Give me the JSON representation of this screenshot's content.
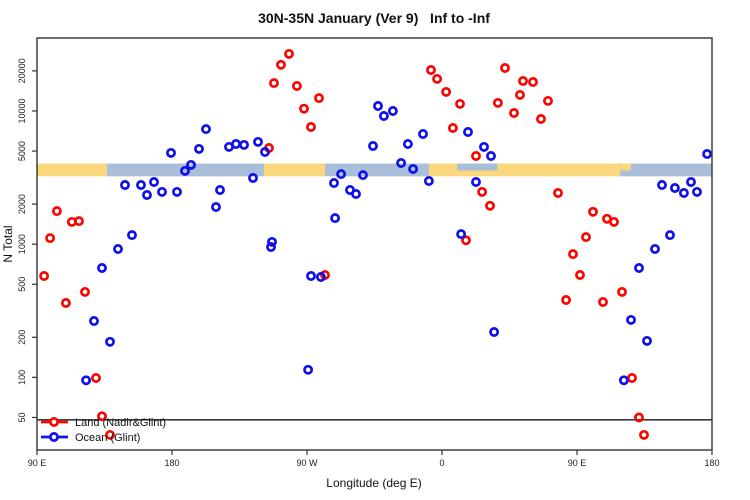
{
  "title": "30N-35N January (Ver 9)   Inf to -Inf",
  "xlabel": "Longitude (deg E)",
  "ylabel": "N Total",
  "colors": {
    "land_series": "#f90600",
    "ocean_series": "#1010e8",
    "band_land": "#fbd87b",
    "band_ocean": "#a9bfd9",
    "frame": "#333333",
    "reference_line": "#3a3a3a",
    "text": "#1a1a1a"
  },
  "legend": {
    "items": [
      {
        "label": "Land (Nadir&Glint)",
        "color": "#f90600"
      },
      {
        "label": "Ocean (Glint)",
        "color": "#1010e8"
      }
    ]
  },
  "chart_data": {
    "type": "scatter",
    "title": "30N-35N January (Ver 9)   Inf to -Inf",
    "xlabel": "Longitude (deg E)",
    "ylabel": "N Total",
    "x_axis": {
      "note": "longitude axis unwrapped, runs 90E -> 180 -> 90W -> 0 -> 90E -> 180; internal coords 90..540",
      "range": [
        90,
        540
      ],
      "ticks": [
        {
          "value": 90,
          "label": "90 E"
        },
        {
          "value": 180,
          "label": "180"
        },
        {
          "value": 270,
          "label": "90 W"
        },
        {
          "value": 360,
          "label": "0"
        },
        {
          "value": 450,
          "label": "90 E"
        },
        {
          "value": 540,
          "label": "180"
        }
      ]
    },
    "y_axis": {
      "scale": "log",
      "range": [
        28.5,
        35300
      ],
      "ticks": [
        50,
        100,
        200,
        500,
        1000,
        2000,
        5000,
        10000,
        20000
      ]
    },
    "reference_line_y": 48,
    "map_band": {
      "value_range": [
        3230,
        4030
      ],
      "segments": [
        {
          "from": 90,
          "to": 136.7,
          "type": "land"
        },
        {
          "from": 136.7,
          "to": 241.3,
          "type": "ocean"
        },
        {
          "from": 241.3,
          "to": 282,
          "type": "land"
        },
        {
          "from": 282,
          "to": 351.3,
          "type": "ocean"
        },
        {
          "from": 351.3,
          "to": 478.7,
          "type": "land"
        },
        {
          "from": 478.7,
          "to": 540,
          "type": "ocean"
        }
      ],
      "overlays": [
        {
          "from": 370,
          "to": 397,
          "type": "ocean",
          "half": "top"
        },
        {
          "from": 479,
          "to": 486,
          "type": "land",
          "half": "top"
        }
      ]
    },
    "series": [
      {
        "name": "Land (Nadir&Glint)",
        "color": "#f90600",
        "points": [
          [
            258,
            26800
          ],
          [
            252.7,
            22200
          ],
          [
            248,
            16200
          ],
          [
            263.3,
            15400
          ],
          [
            278,
            12500
          ],
          [
            268,
            10400
          ],
          [
            272.7,
            7580
          ],
          [
            244.7,
            5270
          ],
          [
            103.3,
            1770
          ],
          [
            118,
            1490
          ],
          [
            113.3,
            1470
          ],
          [
            98.7,
            1110
          ],
          [
            94.7,
            577
          ],
          [
            122,
            438
          ],
          [
            109.3,
            362
          ],
          [
            129.3,
            99
          ],
          [
            133.3,
            51
          ],
          [
            138.7,
            37
          ],
          [
            282,
            587
          ],
          [
            352.7,
            20300
          ],
          [
            356.7,
            17400
          ],
          [
            362.7,
            13900
          ],
          [
            372,
            11300
          ],
          [
            402,
            21000
          ],
          [
            397.3,
            11500
          ],
          [
            408,
            9660
          ],
          [
            414,
            16800
          ],
          [
            420.7,
            16500
          ],
          [
            412,
            13200
          ],
          [
            430.7,
            11900
          ],
          [
            426,
            8710
          ],
          [
            367.3,
            7450
          ],
          [
            382.7,
            4590
          ],
          [
            386.7,
            2470
          ],
          [
            392,
            1940
          ],
          [
            437.3,
            2420
          ],
          [
            460.7,
            1750
          ],
          [
            470,
            1550
          ],
          [
            474.7,
            1470
          ],
          [
            456,
            1130
          ],
          [
            376,
            1070
          ],
          [
            447.3,
            843
          ],
          [
            452,
            587
          ],
          [
            442.7,
            381
          ],
          [
            467.3,
            368
          ],
          [
            480,
            438
          ],
          [
            486.7,
            99
          ],
          [
            491.3,
            50
          ],
          [
            494.7,
            37
          ]
        ]
      },
      {
        "name": "Ocean (Glint)",
        "color": "#1010e8",
        "points": [
          [
            202.7,
            7310
          ],
          [
            179.3,
            4840
          ],
          [
            198,
            5190
          ],
          [
            218,
            5370
          ],
          [
            222.7,
            5650
          ],
          [
            228,
            5560
          ],
          [
            237.3,
            5860
          ],
          [
            242,
            4920
          ],
          [
            188.7,
            3550
          ],
          [
            192.7,
            3940
          ],
          [
            234,
            3140
          ],
          [
            148.7,
            2780
          ],
          [
            159.3,
            2780
          ],
          [
            168,
            2930
          ],
          [
            163.3,
            2340
          ],
          [
            173.3,
            2470
          ],
          [
            183.3,
            2470
          ],
          [
            212,
            2550
          ],
          [
            209.3,
            1900
          ],
          [
            288,
            2880
          ],
          [
            292.7,
            3360
          ],
          [
            298.7,
            2550
          ],
          [
            302.7,
            2380
          ],
          [
            307.3,
            3300
          ],
          [
            288.7,
            1570
          ],
          [
            153.3,
            1170
          ],
          [
            246.7,
            1040
          ],
          [
            317.3,
            10900
          ],
          [
            321.3,
            9160
          ],
          [
            327.3,
            10000
          ],
          [
            314,
            5460
          ],
          [
            347.3,
            6710
          ],
          [
            337.3,
            5650
          ],
          [
            332.7,
            4070
          ],
          [
            340.7,
            3670
          ],
          [
            351.3,
            2980
          ],
          [
            377.3,
            6950
          ],
          [
            388,
            5370
          ],
          [
            392.7,
            4590
          ],
          [
            382.7,
            2930
          ],
          [
            372.7,
            1190
          ],
          [
            512,
            1170
          ],
          [
            506.7,
            2780
          ],
          [
            515.3,
            2640
          ],
          [
            526,
            2930
          ],
          [
            521.3,
            2420
          ],
          [
            530,
            2470
          ],
          [
            536.7,
            4750
          ],
          [
            144,
            920
          ],
          [
            133.3,
            663
          ],
          [
            128,
            265
          ],
          [
            138.7,
            185
          ],
          [
            122.7,
            95
          ],
          [
            246,
            953
          ],
          [
            272.7,
            577
          ],
          [
            279.3,
            567
          ],
          [
            270.7,
            114
          ],
          [
            502,
            920
          ],
          [
            491.3,
            663
          ],
          [
            394.7,
            219
          ],
          [
            486,
            270
          ],
          [
            496.7,
            188
          ],
          [
            481.3,
            95
          ]
        ]
      }
    ],
    "legend_position": "bottom-left",
    "grid": false
  }
}
